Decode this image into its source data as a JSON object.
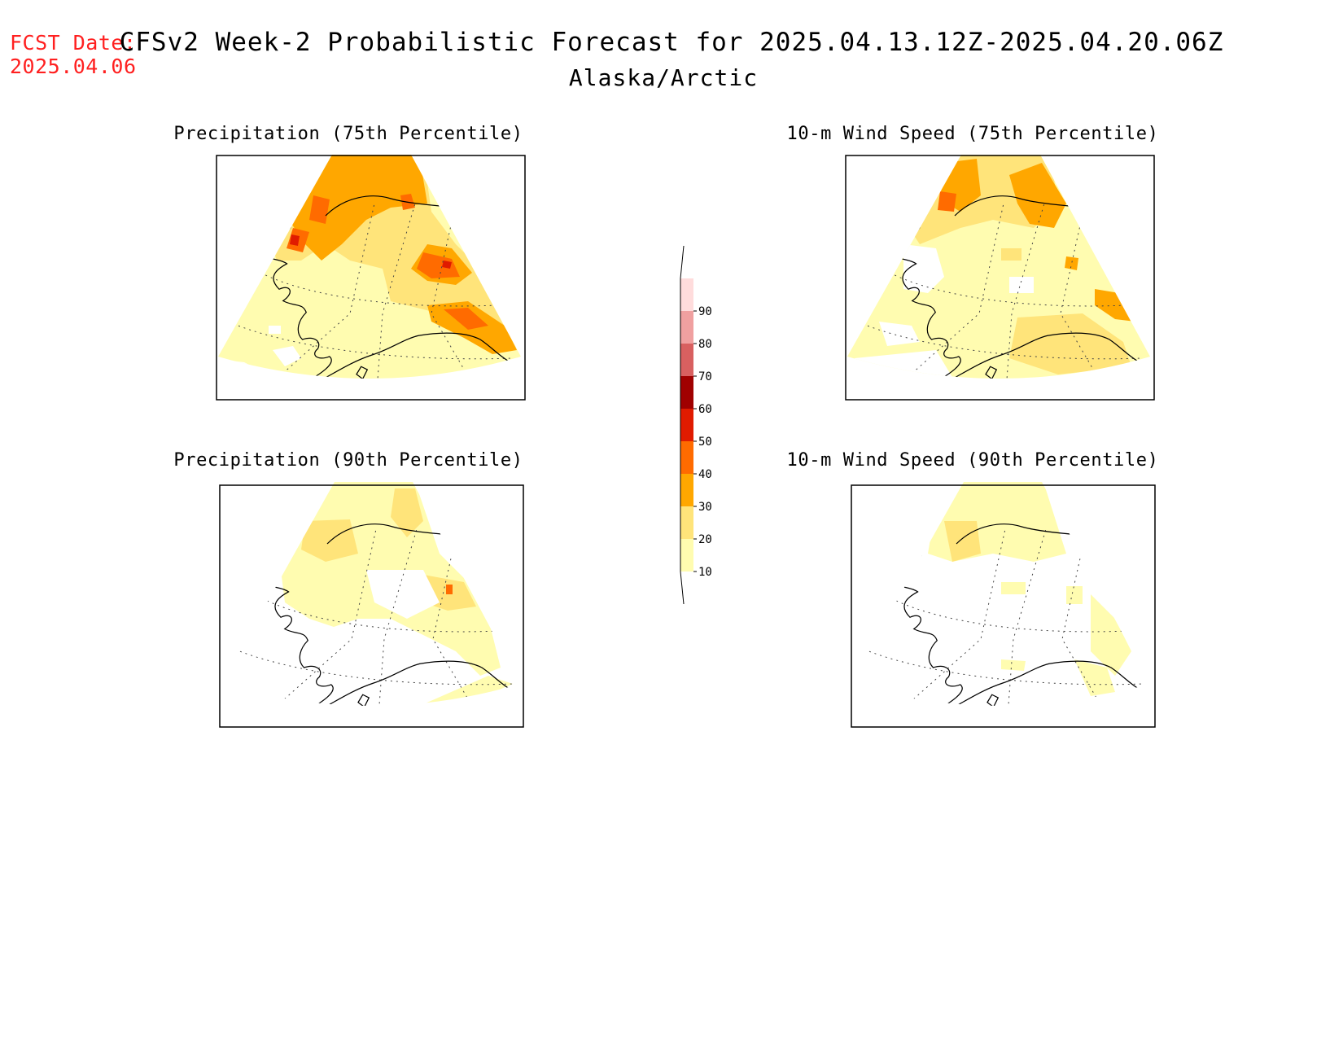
{
  "header": {
    "fcst_label": "FCST Date:",
    "fcst_date": "2025.04.06",
    "title": "CFSv2 Week-2 Probabilistic Forecast for 2025.04.13.12Z-2025.04.20.06Z",
    "subtitle": "Alaska/Arctic"
  },
  "panels": [
    {
      "title": "Precipitation (75th Percentile)"
    },
    {
      "title": "10-m Wind Speed (75th Percentile)"
    },
    {
      "title": "Precipitation (90th Percentile)"
    },
    {
      "title": "10-m Wind Speed (90th Percentile)"
    }
  ],
  "colorbar": {
    "labels": [
      "10",
      "20",
      "30",
      "40",
      "50",
      "60",
      "70",
      "80",
      "90"
    ],
    "colors": [
      "#fffcb0",
      "#ffe47a",
      "#ffa700",
      "#ff6b00",
      "#e01b00",
      "#a00000",
      "#d86060",
      "#f0a0a0",
      "#ffdcdc"
    ]
  }
}
